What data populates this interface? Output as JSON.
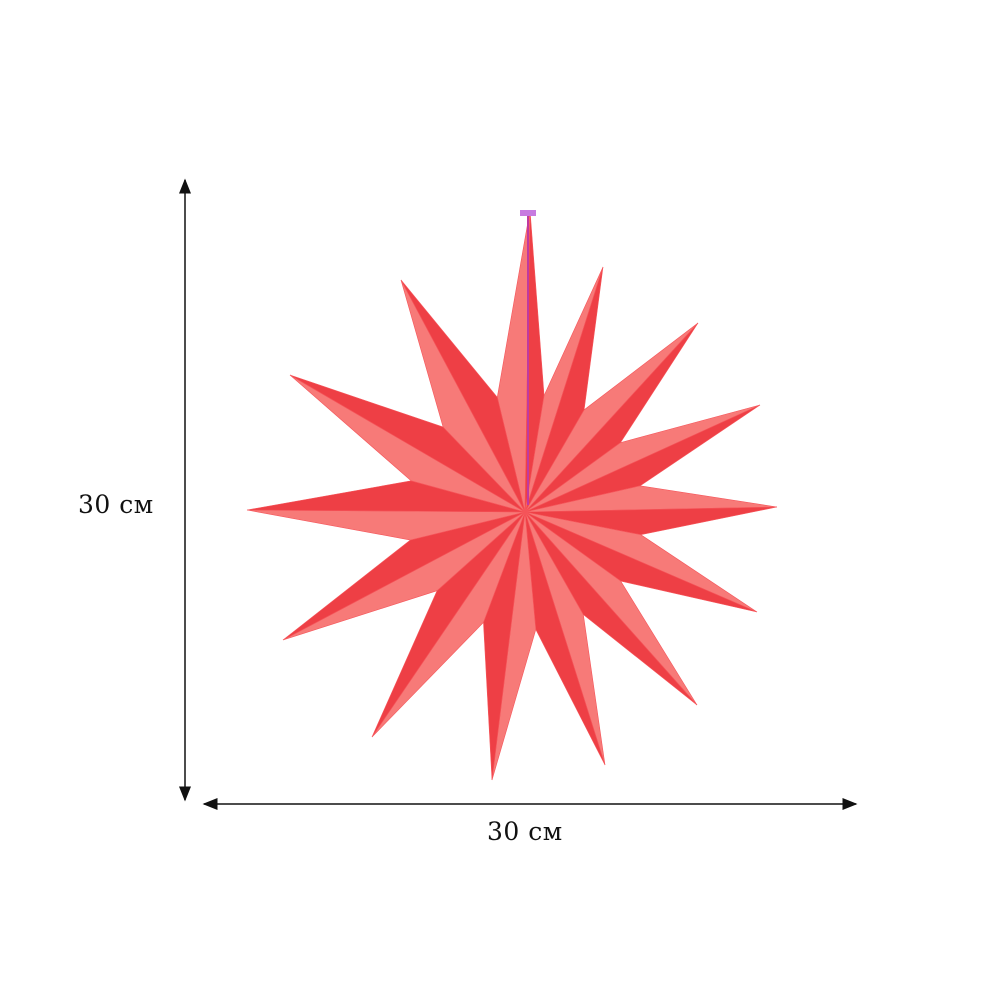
{
  "product": {
    "colors": {
      "paper": "#f5555a",
      "paper_light": "#f77a78",
      "paper_dark": "#ee3f45",
      "string": "#c03aa0"
    },
    "shape": "14-point paper star"
  },
  "dimensions": {
    "height_label": "30 см",
    "width_label": "30 см"
  }
}
